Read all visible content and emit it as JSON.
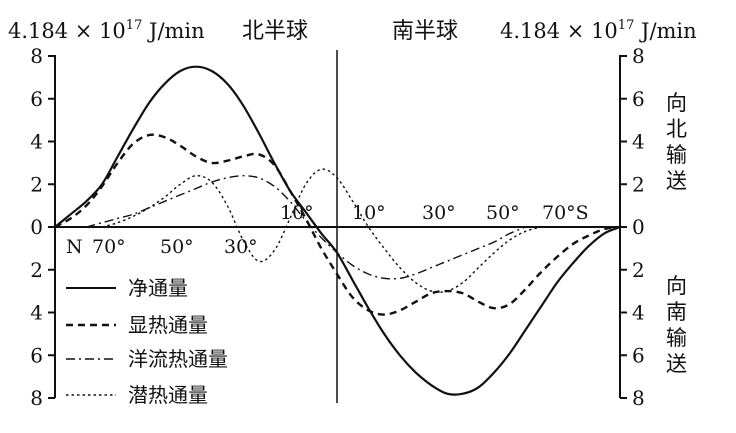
{
  "header": {
    "unit_left": "4.184 × 10",
    "unit_left_exp": "17",
    "unit_left_suffix": " J/min",
    "unit_right": "4.184 × 10",
    "unit_right_exp": "17",
    "unit_right_suffix": " J/min",
    "hemisphere_north": "北半球",
    "hemisphere_south": "南半球"
  },
  "side_labels": {
    "northward": [
      "向",
      "北",
      "输",
      "送"
    ],
    "southward": [
      "向",
      "南",
      "输",
      "送"
    ]
  },
  "axis": {
    "left_ticks": [
      "8",
      "6",
      "4",
      "2",
      "0",
      "2",
      "4",
      "6",
      "8"
    ],
    "right_ticks": [
      "8",
      "6",
      "4",
      "2",
      "0",
      "2",
      "4",
      "6",
      "8"
    ],
    "lat_labels_north_below": [
      "N",
      "70°",
      "50°",
      "30°"
    ],
    "lat_labels_above": [
      "10°",
      "10°",
      "30°",
      "50°",
      "70°S"
    ]
  },
  "legend": {
    "net": "净通量",
    "sensible": "显热通量",
    "ocean": "洋流热通量",
    "latent": "潜热通量"
  },
  "colors": {
    "line": "#111111",
    "background": "#ffffff"
  },
  "chart_data": {
    "type": "line",
    "x_unit": "latitude (°), positive = north, negative = south",
    "ylim": [
      -8,
      8
    ],
    "xlim": [
      90,
      -90
    ],
    "grid": false,
    "legend_position": "bottom-left",
    "series": [
      {
        "name": "净通量",
        "style": "solid",
        "x": [
          90,
          85,
          80,
          75,
          70,
          65,
          60,
          55,
          50,
          45,
          40,
          35,
          30,
          25,
          20,
          15,
          10,
          5,
          0,
          -5,
          -10,
          -15,
          -20,
          -25,
          -30,
          -35,
          -40,
          -45,
          -50,
          -55,
          -60,
          -65,
          -70,
          -75,
          -80,
          -85,
          -90
        ],
        "values": [
          0.0,
          0.6,
          1.2,
          2.0,
          3.3,
          4.6,
          5.8,
          6.7,
          7.3,
          7.5,
          7.3,
          6.7,
          5.7,
          4.4,
          3.0,
          1.7,
          0.7,
          -0.3,
          -1.2,
          -2.5,
          -3.8,
          -5.0,
          -6.0,
          -6.8,
          -7.4,
          -7.8,
          -7.8,
          -7.5,
          -6.8,
          -5.9,
          -4.8,
          -3.7,
          -2.6,
          -1.7,
          -0.9,
          -0.3,
          0.0
        ]
      },
      {
        "name": "显热通量",
        "style": "dashed",
        "x": [
          90,
          85,
          80,
          75,
          70,
          65,
          60,
          55,
          50,
          45,
          40,
          35,
          30,
          25,
          20,
          15,
          10,
          5,
          0,
          -5,
          -10,
          -15,
          -20,
          -25,
          -30,
          -35,
          -40,
          -45,
          -50,
          -55,
          -60,
          -65,
          -70,
          -75,
          -80,
          -85,
          -90
        ],
        "values": [
          0.0,
          0.4,
          1.0,
          1.9,
          3.0,
          3.9,
          4.3,
          4.2,
          3.8,
          3.3,
          3.0,
          3.1,
          3.3,
          3.4,
          2.9,
          1.7,
          0.4,
          -1.0,
          -2.2,
          -3.3,
          -3.9,
          -4.1,
          -3.9,
          -3.5,
          -3.1,
          -3.0,
          -3.1,
          -3.5,
          -3.8,
          -3.6,
          -2.9,
          -2.1,
          -1.4,
          -0.8,
          -0.4,
          -0.1,
          0.0
        ]
      },
      {
        "name": "洋流热通量",
        "style": "dashdot",
        "x": [
          80,
          75,
          70,
          65,
          60,
          55,
          50,
          45,
          40,
          35,
          30,
          25,
          20,
          15,
          10,
          5,
          0,
          -5,
          -10,
          -15,
          -20,
          -25,
          -30,
          -35,
          -40,
          -45,
          -50,
          -55,
          -60
        ],
        "values": [
          0.0,
          0.2,
          0.4,
          0.6,
          0.9,
          1.2,
          1.5,
          1.8,
          2.1,
          2.3,
          2.4,
          2.3,
          1.9,
          1.2,
          0.3,
          -0.5,
          -1.2,
          -1.8,
          -2.2,
          -2.4,
          -2.4,
          -2.2,
          -1.9,
          -1.6,
          -1.3,
          -1.0,
          -0.7,
          -0.3,
          0.0
        ]
      },
      {
        "name": "潜热通量",
        "style": "dotted",
        "x": [
          75,
          70,
          65,
          60,
          55,
          50,
          45,
          40,
          35,
          30,
          25,
          20,
          15,
          10,
          5,
          0,
          -5,
          -10,
          -15,
          -20,
          -25,
          -30,
          -35,
          -40,
          -45,
          -50,
          -55,
          -60,
          -65
        ],
        "values": [
          0.0,
          0.2,
          0.5,
          0.9,
          1.4,
          2.0,
          2.4,
          2.1,
          1.0,
          -0.6,
          -1.6,
          -1.1,
          0.4,
          2.0,
          2.7,
          2.3,
          1.2,
          0.0,
          -1.0,
          -1.9,
          -2.6,
          -3.0,
          -3.0,
          -2.6,
          -1.9,
          -1.2,
          -0.6,
          -0.2,
          0.0
        ]
      }
    ]
  }
}
